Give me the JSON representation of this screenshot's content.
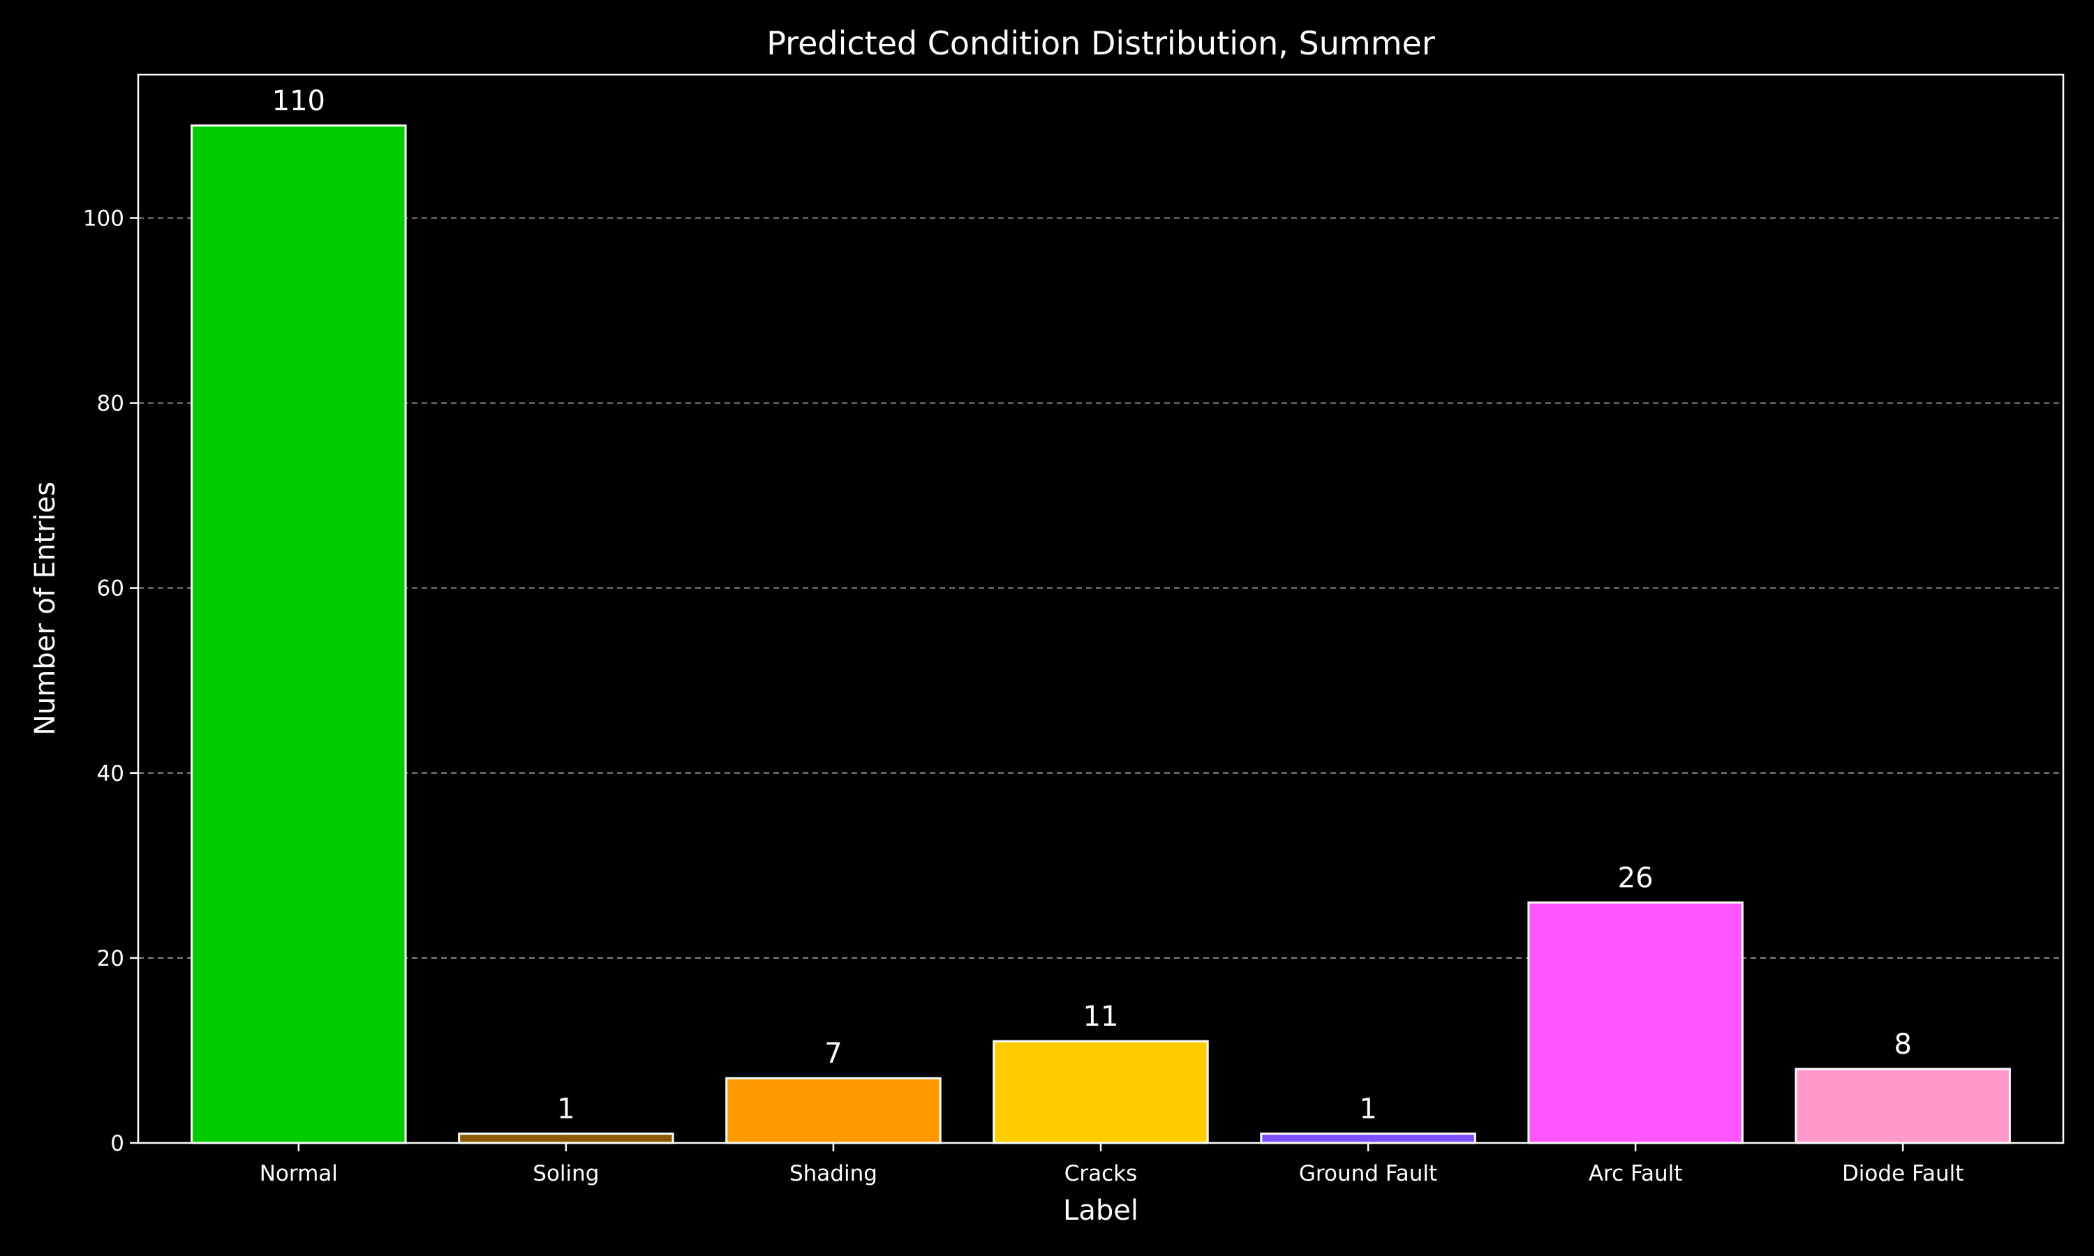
{
  "chart_data": {
    "type": "bar",
    "title": "Predicted Condition Distribution, Summer",
    "xlabel": "Label",
    "ylabel": "Number of Entries",
    "categories": [
      "Normal",
      "Soling",
      "Shading",
      "Cracks",
      "Ground Fault",
      "Arc Fault",
      "Diode Fault"
    ],
    "values": [
      110,
      1,
      7,
      11,
      1,
      26,
      8
    ],
    "colors": [
      "#00cc00",
      "#8b5a00",
      "#ff9900",
      "#ffcc00",
      "#7f4fff",
      "#ff55ff",
      "#ff99cc"
    ],
    "ylim": [
      0,
      115.5
    ],
    "yticks": [
      0,
      20,
      40,
      60,
      80,
      100
    ],
    "grid": "horizontal-dashed",
    "legend": "none",
    "data_labels": true,
    "theme": {
      "background": "#000000",
      "foreground": "#ffffff",
      "grid": "#8a8a8a"
    }
  }
}
